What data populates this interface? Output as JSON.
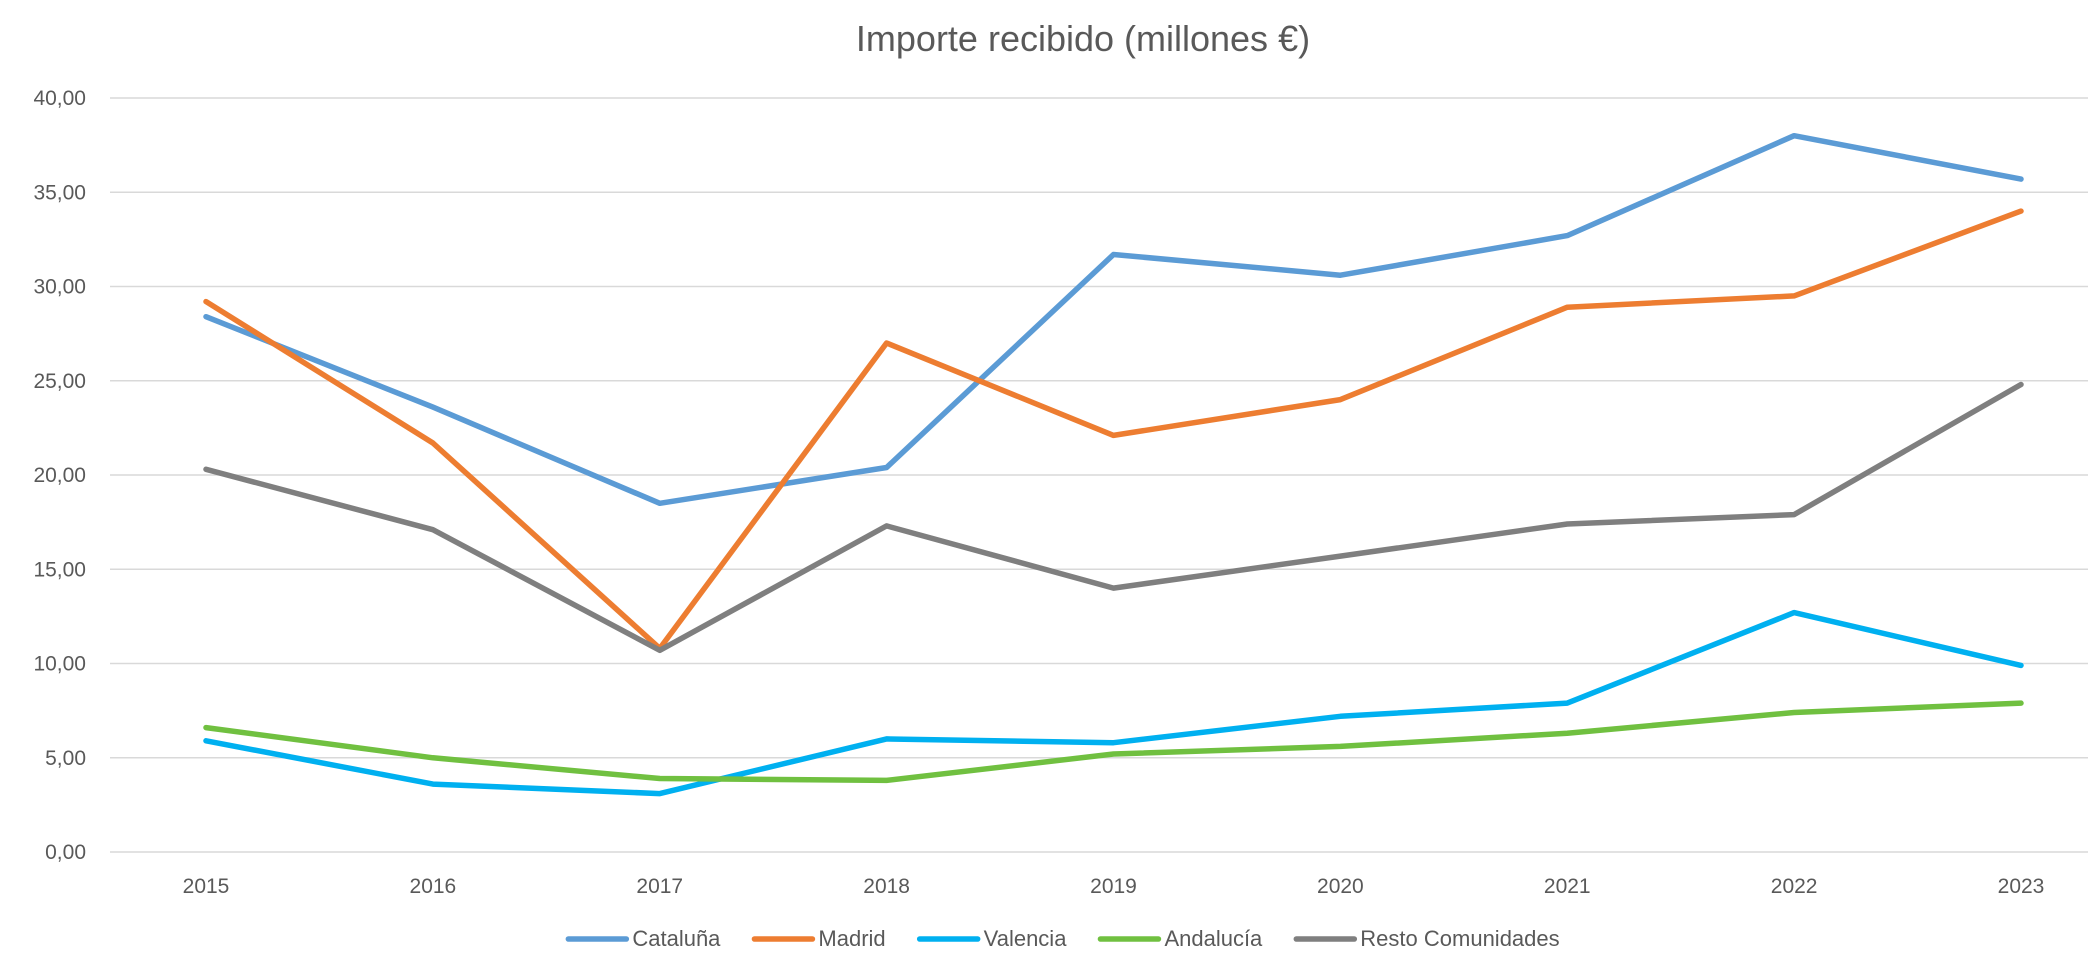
{
  "chart_data": {
    "type": "line",
    "title": "Importe recibido (millones €)",
    "xlabel": "",
    "ylabel": "",
    "categories": [
      "2015",
      "2016",
      "2017",
      "2018",
      "2019",
      "2020",
      "2021",
      "2022",
      "2023"
    ],
    "ylim": [
      0,
      40
    ],
    "yticks": [
      0,
      5,
      10,
      15,
      20,
      25,
      30,
      35,
      40
    ],
    "ytick_labels": [
      "0,00",
      "5,00",
      "10,00",
      "15,00",
      "20,00",
      "25,00",
      "30,00",
      "35,00",
      "40,00"
    ],
    "grid": true,
    "legend_position": "bottom",
    "series": [
      {
        "name": "Cataluña",
        "color": "#5b9bd5",
        "values": [
          28.4,
          23.6,
          18.5,
          20.4,
          31.7,
          30.6,
          32.7,
          38.0,
          35.7
        ]
      },
      {
        "name": "Madrid",
        "color": "#ed7d31",
        "values": [
          29.2,
          21.7,
          10.8,
          27.0,
          22.1,
          24.0,
          28.9,
          29.5,
          34.0
        ]
      },
      {
        "name": "Valencia",
        "color": "#00b0f0",
        "values": [
          5.9,
          3.6,
          3.1,
          6.0,
          5.8,
          7.2,
          7.9,
          12.7,
          9.9
        ]
      },
      {
        "name": "Andalucía",
        "color": "#70c040",
        "values": [
          6.6,
          5.0,
          3.9,
          3.8,
          5.2,
          5.6,
          6.3,
          7.4,
          7.9
        ]
      },
      {
        "name": "Resto Comunidades",
        "color": "#7f7f7f",
        "values": [
          20.3,
          17.1,
          10.7,
          17.3,
          14.0,
          15.7,
          17.4,
          17.9,
          24.8
        ]
      }
    ]
  }
}
